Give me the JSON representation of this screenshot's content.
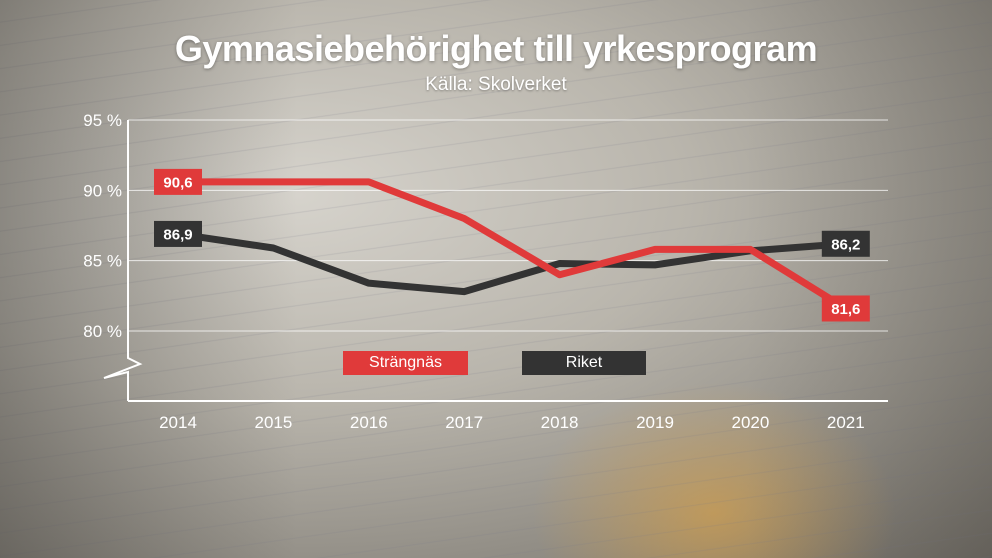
{
  "header": {
    "title": "Gymnasiebehörighet till yrkesprogram",
    "subtitle": "Källa: Skolverket"
  },
  "colors": {
    "strangnas": "#e03a3a",
    "riket": "#333333"
  },
  "chart_data": {
    "type": "line",
    "title": "Gymnasiebehörighet till yrkesprogram",
    "subtitle": "Källa: Skolverket",
    "xlabel": "",
    "ylabel": "",
    "categories": [
      "2014",
      "2015",
      "2016",
      "2017",
      "2018",
      "2019",
      "2020",
      "2021"
    ],
    "ylim": [
      75,
      95
    ],
    "yticks": [
      80,
      85,
      90,
      95
    ],
    "ytick_labels": [
      "80 %",
      "85 %",
      "90 %",
      "95 %"
    ],
    "axis_break": true,
    "grid": true,
    "legend": "bottom-center",
    "series": [
      {
        "name": "Strängnäs",
        "color": "#e03a3a",
        "values": [
          90.6,
          90.6,
          90.6,
          88.0,
          84.0,
          85.8,
          85.8,
          81.6
        ],
        "labels": [
          {
            "index": 0,
            "text": "90,6"
          },
          {
            "index": 7,
            "text": "81,6"
          }
        ]
      },
      {
        "name": "Riket",
        "color": "#333333",
        "values": [
          86.9,
          85.9,
          83.4,
          82.8,
          84.8,
          84.7,
          85.7,
          86.2
        ],
        "labels": [
          {
            "index": 0,
            "text": "86,9"
          },
          {
            "index": 7,
            "text": "86,2"
          }
        ]
      }
    ]
  }
}
